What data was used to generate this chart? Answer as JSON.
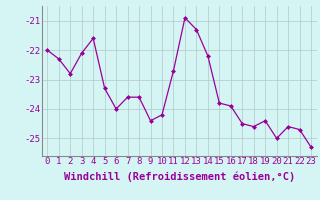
{
  "x": [
    0,
    1,
    2,
    3,
    4,
    5,
    6,
    7,
    8,
    9,
    10,
    11,
    12,
    13,
    14,
    15,
    16,
    17,
    18,
    19,
    20,
    21,
    22,
    23
  ],
  "y": [
    -22.0,
    -22.3,
    -22.8,
    -22.1,
    -21.6,
    -23.3,
    -24.0,
    -23.6,
    -23.6,
    -24.4,
    -24.2,
    -22.7,
    -20.9,
    -21.3,
    -22.2,
    -23.8,
    -23.9,
    -24.5,
    -24.6,
    -24.4,
    -25.0,
    -24.6,
    -24.7,
    -25.3
  ],
  "line_color": "#990099",
  "marker": "D",
  "marker_size": 2,
  "bg_color": "#d5f5f5",
  "grid_color": "#b0c8c8",
  "xlabel": "Windchill (Refroidissement éolien,°C)",
  "xlim": [
    -0.5,
    23.5
  ],
  "ylim": [
    -25.6,
    -20.5
  ],
  "yticks": [
    -25,
    -24,
    -23,
    -22,
    -21
  ],
  "xticks": [
    0,
    1,
    2,
    3,
    4,
    5,
    6,
    7,
    8,
    9,
    10,
    11,
    12,
    13,
    14,
    15,
    16,
    17,
    18,
    19,
    20,
    21,
    22,
    23
  ],
  "tick_fontsize": 6.5,
  "xlabel_fontsize": 7.5,
  "label_color": "#990099",
  "spine_color": "#888888"
}
